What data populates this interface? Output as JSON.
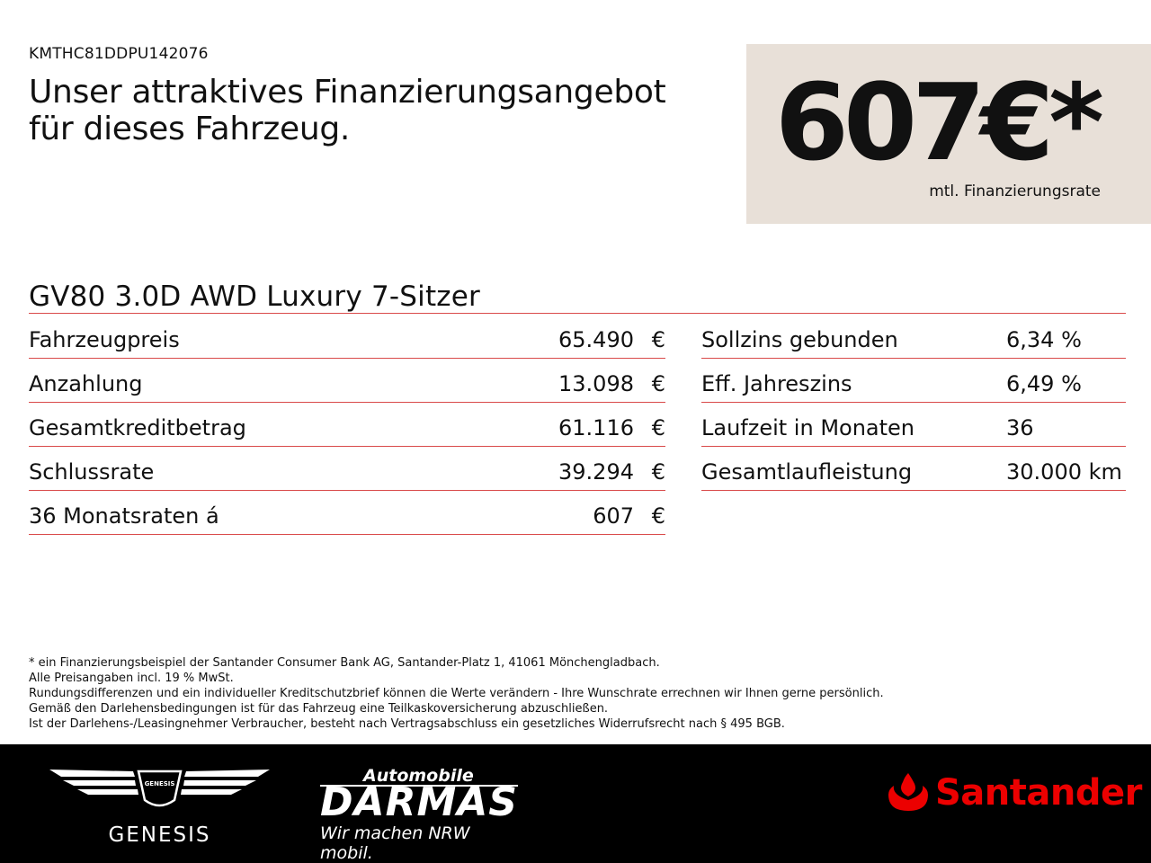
{
  "header": {
    "vin": "KMTHC81DDPU142076",
    "headline_line1": "Unser attraktives Finanzierungsangebot",
    "headline_line2": "für dieses Fahrzeug."
  },
  "price": {
    "value": "607€*",
    "caption": "mtl. Finanzierungsrate",
    "box_color": "#e8e0d8"
  },
  "model": "GV80 3.0D AWD Luxury 7-Sitzer",
  "rows_left": [
    {
      "label": "Fahrzeugpreis",
      "value": "65.490",
      "currency": "€"
    },
    {
      "label": "Anzahlung",
      "value": "13.098",
      "currency": "€"
    },
    {
      "label": "Gesamtkreditbetrag",
      "value": "61.116",
      "currency": "€"
    },
    {
      "label": "Schlussrate",
      "value": "39.294",
      "currency": "€"
    },
    {
      "label": "36 Monatsraten á",
      "value": "607",
      "currency": "€"
    }
  ],
  "rows_right": [
    {
      "label": "Sollzins gebunden",
      "value": "6,34 %"
    },
    {
      "label": "Eff. Jahreszins",
      "value": "6,49 %"
    },
    {
      "label": "Laufzeit in Monaten",
      "value": "36"
    },
    {
      "label": "Gesamtlaufleistung",
      "value": "30.000 km"
    }
  ],
  "footnotes": [
    "* ein Finanzierungsbeispiel der Santander Consumer Bank AG, Santander-Platz 1, 41061 Mönchengladbach.",
    "Alle Preisangaben incl. 19 % MwSt.",
    "Rundungsdifferenzen und ein individueller Kreditschutzbrief können die Werte verändern - Ihre Wunschrate errechnen wir Ihnen gerne persönlich.",
    "Gemäß den Darlehensbedingungen ist für das Fahrzeug eine Teilkaskoversicherung abzuschließen.",
    "Ist der Darlehens-/Leasingnehmer Verbraucher, besteht nach Vertragsabschluss ein gesetzliches Widerrufsrecht nach § 495 BGB."
  ],
  "logos": {
    "genesis_emblem_text": "GENESIS",
    "genesis_word": "GENESIS",
    "darmas_top": "Automobile",
    "darmas_main": "DARMAS",
    "darmas_sub": "Wir machen NRW mobil.",
    "santander_word": "Santander",
    "santander_color": "#ec0000",
    "accent_line_color": "#d94a4a"
  }
}
